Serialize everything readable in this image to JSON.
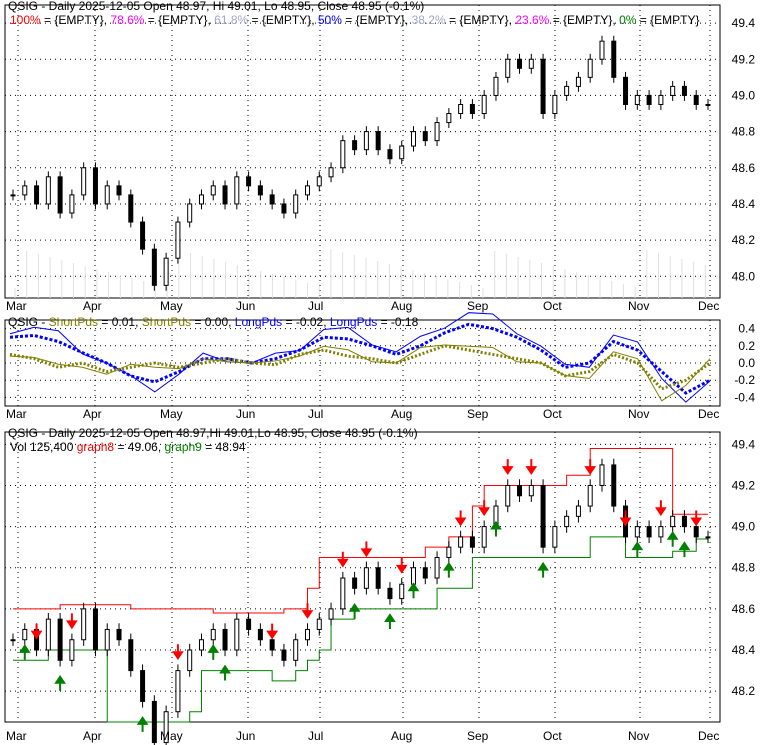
{
  "colors": {
    "up": "#000000",
    "red": "#ff0000",
    "green": "#008000",
    "olive": "#808000",
    "blue": "#0000ff",
    "magenta": "#ff00ff",
    "grey": "#a0a8c8"
  },
  "chart_data": [
    {
      "type": "candlestick",
      "title": "QSIG - Daily 2025-12-05 Open 48.97, Hi 49.01, Lo 48.95, Close 48.95 (-0.1%)",
      "legend": [
        {
          "label": "100%",
          "value": " = {EMPTY}, ",
          "color": "#ff0000"
        },
        {
          "label": "78.6%",
          "value": " = {EMPTY}, ",
          "color": "#ff00ff"
        },
        {
          "label": "61.8%",
          "value": " = {EMPTY}, ",
          "color": "#a0a8c8"
        },
        {
          "label": "50%",
          "value": " = {EMPTY}, ",
          "color": "#0000ff"
        },
        {
          "label": "38.2%",
          "value": " = {EMPTY}, ",
          "color": "#a0a8c8"
        },
        {
          "label": "23.6%",
          "value": " = {EMPTY}, ",
          "color": "#ff00ff"
        },
        {
          "label": "0%",
          "value": " = {EMPTY}",
          "color": "#008000"
        }
      ],
      "ylim": [
        47.88,
        49.5
      ],
      "yticks": [
        "49.4",
        "49.2",
        "49.0",
        "48.8",
        "48.6",
        "48.4",
        "48.2",
        "48.0"
      ],
      "xticks": [
        "Mar",
        "Apr",
        "May",
        "Jun",
        "Jul",
        "Aug",
        "Sep",
        "Oct",
        "Nov",
        "Dec"
      ],
      "close": [
        48.45,
        48.5,
        48.4,
        48.55,
        48.35,
        48.45,
        48.6,
        48.4,
        48.5,
        48.45,
        48.3,
        48.15,
        47.95,
        48.1,
        48.3,
        48.4,
        48.45,
        48.5,
        48.4,
        48.55,
        48.5,
        48.45,
        48.4,
        48.35,
        48.45,
        48.5,
        48.55,
        48.6,
        48.75,
        48.7,
        48.8,
        48.7,
        48.65,
        48.72,
        48.8,
        48.75,
        48.85,
        48.9,
        48.95,
        48.9,
        49.0,
        49.1,
        49.2,
        49.15,
        49.2,
        48.9,
        49.0,
        49.05,
        49.1,
        49.2,
        49.3,
        49.1,
        48.95,
        49.0,
        48.95,
        49.0,
        49.05,
        49.0,
        48.95,
        48.95
      ]
    },
    {
      "type": "line",
      "title_prefix": "QSIG - ",
      "legend": [
        {
          "label": "ShortPds",
          "value": " = 0.01, ",
          "color": "#808000"
        },
        {
          "label": "ShortPds",
          "value": " = 0.00, ",
          "color": "#808000"
        },
        {
          "label": "LongPds",
          "value": " = -0.02, ",
          "color": "#0000ff"
        },
        {
          "label": "LongPds",
          "value": " = -0.18",
          "color": "#0000ff"
        }
      ],
      "ylim": [
        -0.5,
        0.5
      ],
      "yticks": [
        "0.4",
        "0.2",
        "0.0",
        "-0.2",
        "-0.4"
      ],
      "xticks": [
        "Mar",
        "Apr",
        "May",
        "Jun",
        "Jul",
        "Aug",
        "Sep",
        "Oct",
        "Nov",
        "Dec"
      ],
      "series": [
        {
          "name": "LongPds-dots",
          "values": [
            0.3,
            0.32,
            0.25,
            0.12,
            0.0,
            -0.15,
            -0.22,
            -0.1,
            0.05,
            0.05,
            0.0,
            0.05,
            0.15,
            0.3,
            0.28,
            0.2,
            0.1,
            0.2,
            0.35,
            0.45,
            0.4,
            0.3,
            0.15,
            -0.05,
            0.0,
            0.25,
            0.15,
            -0.1,
            -0.35,
            -0.2
          ]
        },
        {
          "name": "ShortPds",
          "values": [
            0.1,
            0.05,
            -0.05,
            0.0,
            -0.1,
            -0.05,
            0.0,
            -0.05,
            0.0,
            0.05,
            0.0,
            -0.02,
            0.1,
            0.15,
            0.08,
            0.05,
            0.0,
            0.1,
            0.2,
            0.15,
            0.1,
            0.05,
            0.0,
            -0.15,
            -0.1,
            0.1,
            0.0,
            -0.3,
            -0.2,
            0.0
          ]
        }
      ]
    },
    {
      "type": "candlestick",
      "title": "QSIG - Daily 2025-12-05 Open 48.97,Hi 49.01,Lo 48.95, Close 48.95 (-0.1%)",
      "vol_label": "Vol 125,400 ",
      "legend": [
        {
          "label": "graph8",
          "value": " = 49.06, ",
          "color": "#ff0000"
        },
        {
          "label": "graph9",
          "value": " = 48.94",
          "color": "#008000"
        }
      ],
      "ylim": [
        48.05,
        49.46
      ],
      "yticks": [
        "49.4",
        "49.2",
        "49.0",
        "48.8",
        "48.6",
        "48.4",
        "48.2"
      ],
      "xticks": [
        "Mar",
        "Apr",
        "May",
        "Jun",
        "Jul",
        "Aug",
        "Sep",
        "Oct",
        "Nov",
        "Dec"
      ],
      "upper": [
        48.6,
        48.6,
        48.6,
        48.6,
        48.62,
        48.62,
        48.62,
        48.62,
        48.62,
        48.62,
        48.6,
        48.6,
        48.6,
        48.6,
        48.6,
        48.6,
        48.6,
        48.58,
        48.58,
        48.58,
        48.58,
        48.58,
        48.58,
        48.6,
        48.6,
        48.7,
        48.85,
        48.85,
        48.85,
        48.85,
        48.85,
        48.85,
        48.85,
        48.85,
        48.85,
        48.9,
        48.9,
        48.95,
        48.95,
        49.1,
        49.2,
        49.2,
        49.2,
        49.2,
        49.2,
        49.2,
        49.2,
        49.25,
        49.25,
        49.38,
        49.38,
        49.38,
        49.38,
        49.38,
        49.38,
        49.38,
        49.06,
        49.06,
        49.06,
        49.06
      ],
      "lower": [
        48.35,
        48.35,
        48.35,
        48.4,
        48.4,
        48.4,
        48.4,
        48.4,
        48.05,
        48.05,
        48.05,
        48.05,
        48.05,
        48.05,
        48.05,
        48.1,
        48.3,
        48.3,
        48.3,
        48.3,
        48.3,
        48.3,
        48.25,
        48.25,
        48.3,
        48.35,
        48.4,
        48.55,
        48.55,
        48.6,
        48.6,
        48.6,
        48.6,
        48.6,
        48.6,
        48.6,
        48.7,
        48.7,
        48.7,
        48.85,
        48.85,
        48.85,
        48.85,
        48.85,
        48.85,
        48.85,
        48.85,
        48.85,
        48.85,
        48.95,
        48.95,
        48.95,
        48.85,
        48.85,
        48.85,
        48.85,
        48.88,
        48.88,
        48.94,
        48.94
      ],
      "down_signals": [
        2,
        5,
        14,
        22,
        25,
        28,
        30,
        33,
        38,
        40,
        42,
        44,
        49,
        52,
        55,
        58
      ],
      "up_signals": [
        1,
        4,
        11,
        17,
        18,
        29,
        32,
        34,
        37,
        41,
        45,
        53,
        56,
        57
      ]
    }
  ]
}
